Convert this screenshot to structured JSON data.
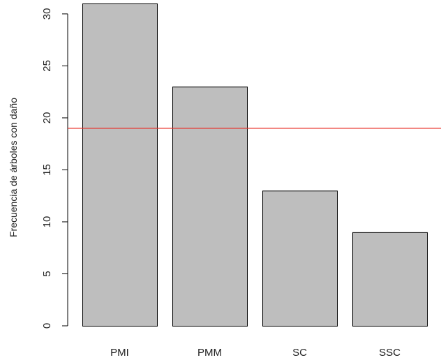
{
  "chart_data": {
    "type": "bar",
    "categories": [
      "PMI",
      "PMM",
      "SC",
      "SSC"
    ],
    "values": [
      31,
      23,
      13,
      9
    ],
    "title": "",
    "xlabel": "",
    "ylabel": "Frecuencia de árboles con daño",
    "ylim": [
      0,
      31
    ],
    "yticks": [
      0,
      5,
      10,
      15,
      20,
      25,
      30
    ],
    "reference_line": {
      "y": 19,
      "color": "#e8302a"
    },
    "bar_color": "#bebebe",
    "grid": false,
    "legend": "none"
  }
}
